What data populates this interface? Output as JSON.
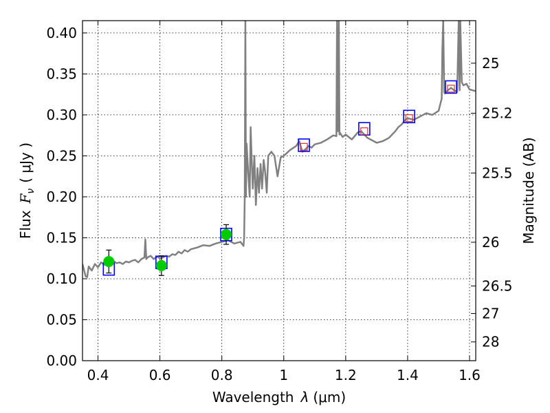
{
  "chart_data": {
    "type": "scatter",
    "xlabel": "Wavelength",
    "xlabel_symbol": "λ",
    "xlabel_unit": "(μm)",
    "ylabel": "Flux",
    "ylabel_symbol": "F",
    "ylabel_subscript": "ν",
    "ylabel_unit": "( μJy )",
    "ylabel_right": "Magnitude (AB)",
    "xlim": [
      0.35,
      1.62
    ],
    "ylim": [
      0.0,
      0.415
    ],
    "grid": true,
    "x_ticks": [
      0.4,
      0.6,
      0.8,
      1.0,
      1.2,
      1.4,
      1.6
    ],
    "x_tick_labels": [
      "0.4",
      "0.6",
      "0.8",
      "1",
      "1.2",
      "1.4",
      "1.6"
    ],
    "y_ticks": [
      0.0,
      0.05,
      0.1,
      0.15,
      0.2,
      0.25,
      0.3,
      0.35,
      0.4
    ],
    "y_tick_labels": [
      "0.00",
      "0.05",
      "0.10",
      "0.15",
      "0.20",
      "0.25",
      "0.30",
      "0.35",
      "0.40"
    ],
    "right_ticks": [
      {
        "label": "25",
        "mag": 25.0
      },
      {
        "label": "25.2",
        "mag": 25.2
      },
      {
        "label": "25.5",
        "mag": 25.5
      },
      {
        "label": "26",
        "mag": 26.0
      },
      {
        "label": "26.5",
        "mag": 26.5
      },
      {
        "label": "27",
        "mag": 27.0
      },
      {
        "label": "28",
        "mag": 28.0
      }
    ],
    "colors": {
      "model": "#808080",
      "observed": "#00cc00",
      "model_band": "#0000ff",
      "synthetic": "#cc3333",
      "errorbar": "#000000",
      "grid": "#000000"
    },
    "series": [
      {
        "name": "model_spectrum",
        "style": "line",
        "x": [
          0.35,
          0.36,
          0.365,
          0.37,
          0.38,
          0.39,
          0.4,
          0.41,
          0.42,
          0.43,
          0.44,
          0.45,
          0.46,
          0.47,
          0.48,
          0.49,
          0.5,
          0.51,
          0.52,
          0.53,
          0.54,
          0.55,
          0.553,
          0.556,
          0.56,
          0.57,
          0.58,
          0.59,
          0.6,
          0.61,
          0.62,
          0.63,
          0.64,
          0.65,
          0.66,
          0.67,
          0.68,
          0.69,
          0.7,
          0.72,
          0.74,
          0.76,
          0.78,
          0.8,
          0.82,
          0.84,
          0.86,
          0.87,
          0.872,
          0.874,
          0.876,
          0.878,
          0.88,
          0.885,
          0.89,
          0.893,
          0.896,
          0.9,
          0.905,
          0.91,
          0.915,
          0.92,
          0.925,
          0.93,
          0.935,
          0.94,
          0.945,
          0.95,
          0.96,
          0.97,
          0.98,
          0.99,
          1.0,
          1.02,
          1.04,
          1.05,
          1.06,
          1.07,
          1.08,
          1.09,
          1.1,
          1.12,
          1.14,
          1.16,
          1.17,
          1.172,
          1.175,
          1.178,
          1.18,
          1.182,
          1.19,
          1.2,
          1.22,
          1.24,
          1.25,
          1.26,
          1.27,
          1.28,
          1.3,
          1.32,
          1.34,
          1.36,
          1.37,
          1.38,
          1.39,
          1.4,
          1.42,
          1.44,
          1.46,
          1.48,
          1.5,
          1.51,
          1.512,
          1.515,
          1.518,
          1.52,
          1.53,
          1.54,
          1.55,
          1.56,
          1.565,
          1.568,
          1.57,
          1.575,
          1.58,
          1.59,
          1.6,
          1.61,
          1.62
        ],
        "y": [
          0.118,
          0.103,
          0.102,
          0.115,
          0.11,
          0.118,
          0.114,
          0.12,
          0.117,
          0.121,
          0.118,
          0.122,
          0.119,
          0.12,
          0.118,
          0.121,
          0.12,
          0.122,
          0.123,
          0.12,
          0.124,
          0.126,
          0.148,
          0.124,
          0.126,
          0.128,
          0.124,
          0.127,
          0.125,
          0.126,
          0.128,
          0.127,
          0.13,
          0.129,
          0.133,
          0.131,
          0.135,
          0.133,
          0.136,
          0.138,
          0.141,
          0.14,
          0.143,
          0.145,
          0.147,
          0.143,
          0.145,
          0.14,
          0.15,
          0.2,
          0.415,
          0.2,
          0.265,
          0.23,
          0.2,
          0.285,
          0.25,
          0.21,
          0.25,
          0.19,
          0.235,
          0.205,
          0.24,
          0.21,
          0.245,
          0.23,
          0.205,
          0.25,
          0.255,
          0.25,
          0.225,
          0.248,
          0.25,
          0.257,
          0.262,
          0.268,
          0.255,
          0.258,
          0.262,
          0.26,
          0.264,
          0.266,
          0.27,
          0.275,
          0.274,
          0.415,
          0.28,
          0.415,
          0.276,
          0.278,
          0.273,
          0.276,
          0.27,
          0.279,
          0.28,
          0.276,
          0.272,
          0.27,
          0.266,
          0.268,
          0.272,
          0.28,
          0.285,
          0.288,
          0.293,
          0.296,
          0.294,
          0.298,
          0.302,
          0.3,
          0.305,
          0.32,
          0.38,
          0.415,
          0.328,
          0.326,
          0.33,
          0.333,
          0.33,
          0.328,
          0.415,
          0.33,
          0.415,
          0.34,
          0.336,
          0.338,
          0.331,
          0.33,
          0.329
        ]
      },
      {
        "name": "observed_photometry",
        "style": "points_with_errors",
        "x": [
          0.435,
          0.605,
          0.814
        ],
        "y": [
          0.121,
          0.116,
          0.154
        ],
        "err": [
          0.014,
          0.012,
          0.012
        ]
      },
      {
        "name": "model_band_flux",
        "style": "open_squares",
        "x": [
          0.435,
          0.605,
          0.814,
          1.065,
          1.26,
          1.405,
          1.54
        ],
        "y": [
          0.112,
          0.12,
          0.154,
          0.263,
          0.283,
          0.298,
          0.334
        ]
      },
      {
        "name": "synthetic_photometry",
        "style": "small_squares",
        "x": [
          1.065,
          1.26,
          1.405,
          1.54
        ],
        "y": [
          0.261,
          0.28,
          0.296,
          0.332
        ]
      }
    ]
  }
}
